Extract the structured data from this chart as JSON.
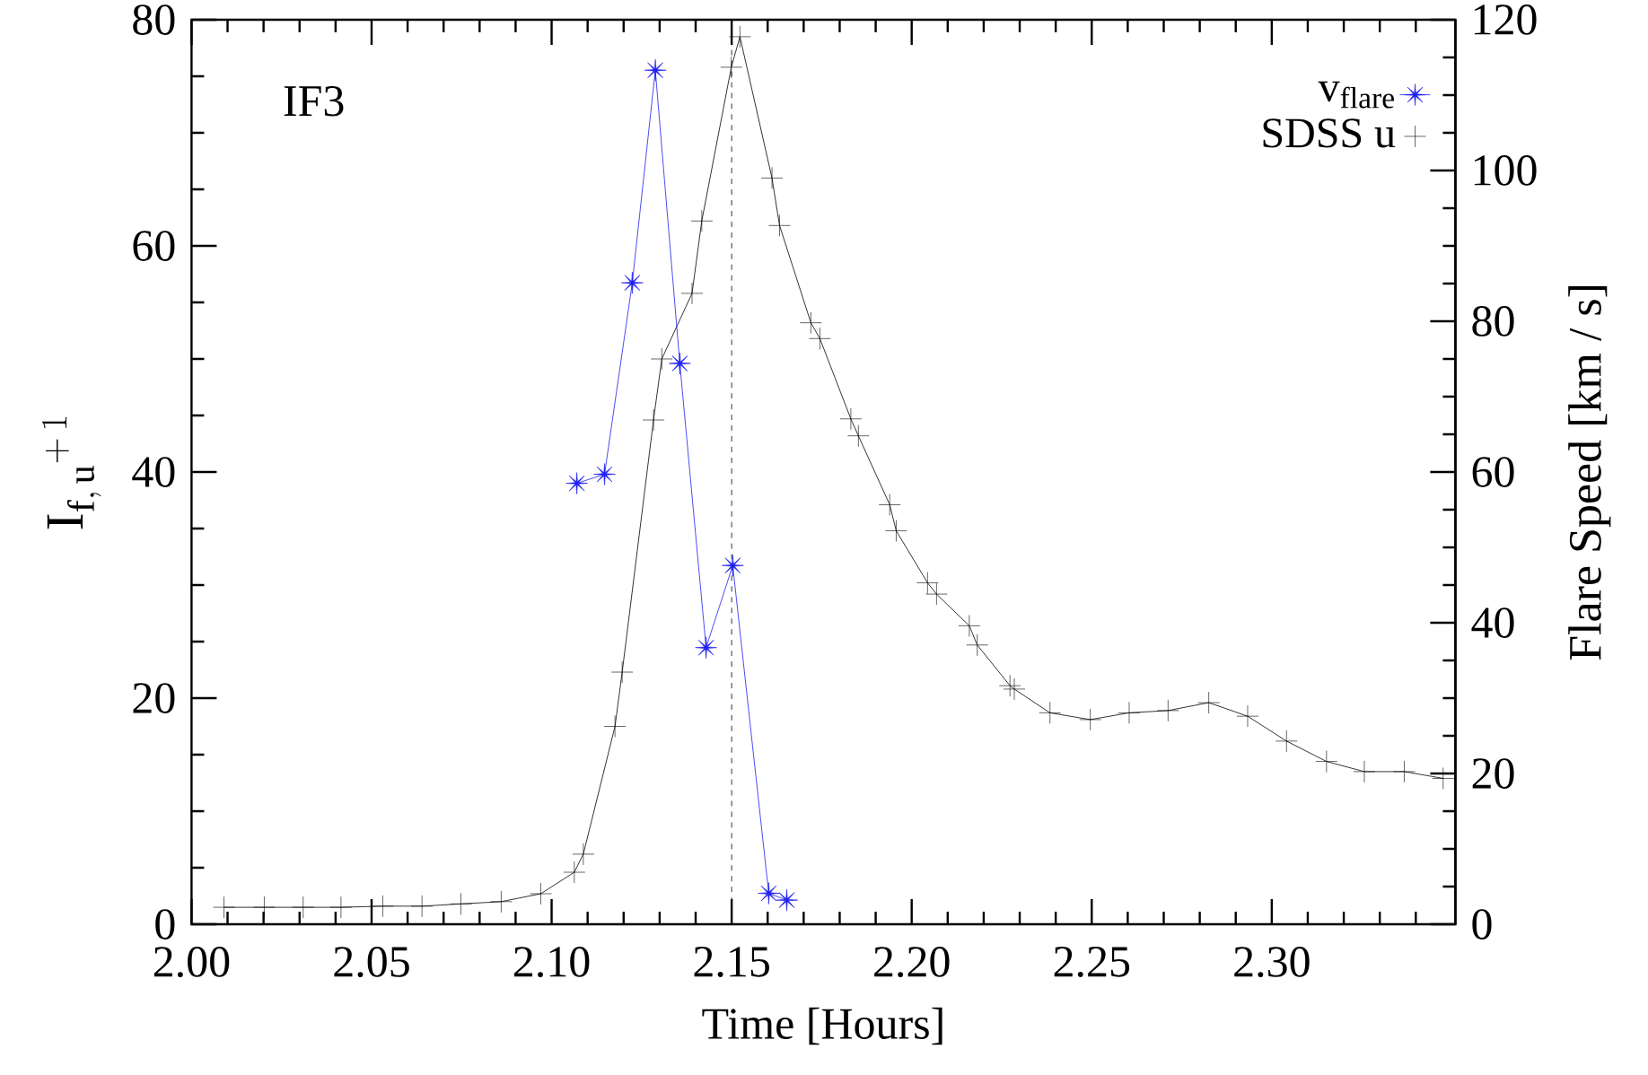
{
  "chart_data": {
    "type": "line",
    "xlabel": "Time [Hours]",
    "ylabel": "\\mathrm{I}_{\\mathrm{f,\\,u}}{}^{+\\,1}",
    "y2label": "Flare Speed [km / s]",
    "annotations": [
      "IF3"
    ],
    "legend": "top right",
    "xlim": [
      2.0,
      2.351
    ],
    "ylim": [
      0,
      80
    ],
    "y2lim": [
      0,
      120
    ],
    "xticks": [
      {
        "value": 2.0,
        "label": "2.00"
      },
      {
        "value": 2.01,
        "label": null
      },
      {
        "value": 2.02,
        "label": null
      },
      {
        "value": 2.03,
        "label": null
      },
      {
        "value": 2.04,
        "label": null
      },
      {
        "value": 2.05,
        "label": "2.05"
      },
      {
        "value": 2.06,
        "label": null
      },
      {
        "value": 2.07,
        "label": null
      },
      {
        "value": 2.08,
        "label": null
      },
      {
        "value": 2.09,
        "label": null
      },
      {
        "value": 2.1,
        "label": "2.10"
      },
      {
        "value": 2.11,
        "label": null
      },
      {
        "value": 2.12,
        "label": null
      },
      {
        "value": 2.13,
        "label": null
      },
      {
        "value": 2.14,
        "label": null
      },
      {
        "value": 2.15,
        "label": "2.15"
      },
      {
        "value": 2.16,
        "label": null
      },
      {
        "value": 2.17,
        "label": null
      },
      {
        "value": 2.18,
        "label": null
      },
      {
        "value": 2.19,
        "label": null
      },
      {
        "value": 2.2,
        "label": "2.20"
      },
      {
        "value": 2.21,
        "label": null
      },
      {
        "value": 2.22,
        "label": null
      },
      {
        "value": 2.23,
        "label": null
      },
      {
        "value": 2.24,
        "label": null
      },
      {
        "value": 2.25,
        "label": "2.25"
      },
      {
        "value": 2.26,
        "label": null
      },
      {
        "value": 2.27,
        "label": null
      },
      {
        "value": 2.28,
        "label": null
      },
      {
        "value": 2.29,
        "label": null
      },
      {
        "value": 2.3,
        "label": "2.30"
      },
      {
        "value": 2.31,
        "label": null
      },
      {
        "value": 2.32,
        "label": null
      },
      {
        "value": 2.33,
        "label": null
      },
      {
        "value": 2.34,
        "label": null
      }
    ],
    "yticks": [
      0,
      {
        "value": 5,
        "label": null
      },
      {
        "value": 10,
        "label": null
      },
      {
        "value": 15,
        "label": null
      },
      20,
      {
        "value": 25,
        "label": null
      },
      {
        "value": 30,
        "label": null
      },
      {
        "value": 35,
        "label": null
      },
      40,
      {
        "value": 45,
        "label": null
      },
      {
        "value": 50,
        "label": null
      },
      {
        "value": 55,
        "label": null
      },
      60,
      {
        "value": 65,
        "label": null
      },
      {
        "value": 70,
        "label": null
      },
      {
        "value": 75,
        "label": null
      },
      80
    ],
    "y2ticks": [
      0,
      {
        "value": 5,
        "label": null
      },
      {
        "value": 10,
        "label": null
      },
      {
        "value": 15,
        "label": null
      },
      20,
      {
        "value": 25,
        "label": null
      },
      {
        "value": 30,
        "label": null
      },
      {
        "value": 35,
        "label": null
      },
      40,
      {
        "value": 45,
        "label": null
      },
      {
        "value": 50,
        "label": null
      },
      {
        "value": 55,
        "label": null
      },
      60,
      {
        "value": 65,
        "label": null
      },
      {
        "value": 70,
        "label": null
      },
      {
        "value": 75,
        "label": null
      },
      80,
      {
        "value": 85,
        "label": null
      },
      {
        "value": 90,
        "label": null
      },
      {
        "value": 95,
        "label": null
      },
      100,
      {
        "value": 105,
        "label": null
      },
      {
        "value": 110,
        "label": null
      },
      {
        "value": 115,
        "label": null
      },
      120
    ],
    "ref_lines": [
      {
        "axis": "x",
        "value": 2.15,
        "color": "#000000",
        "line_style": "dashed"
      }
    ],
    "series": [
      {
        "name": "v$_{flare}$",
        "color": "#2020f0",
        "axis": "y2",
        "marker": "star",
        "x": [
          2.107,
          2.1147,
          2.1224,
          2.1288,
          2.1356,
          2.1429,
          2.1503,
          2.1603,
          2.1653
        ],
        "values": [
          58.5,
          59.7,
          85.1,
          113.3,
          74.4,
          36.7,
          47.6,
          4.1,
          3.2
        ]
      },
      {
        "name": "SDSS u",
        "color": "#000000",
        "marker": "cross",
        "x": [
          2.009,
          2.0202,
          2.031,
          2.0415,
          2.0531,
          2.064,
          2.0748,
          2.086,
          2.097,
          2.1063,
          2.1088,
          2.1176,
          2.1196,
          2.1283,
          2.1306,
          2.139,
          2.1417,
          2.1499,
          2.1523,
          2.1612,
          2.1633,
          2.172,
          2.1745,
          2.1831,
          2.1852,
          2.1939,
          2.1957,
          2.2044,
          2.2069,
          2.216,
          2.2182,
          2.2273,
          2.2285,
          2.2384,
          2.2496,
          2.2604,
          2.2712,
          2.2825,
          2.2933,
          2.3041,
          2.3152,
          2.3257,
          2.3368,
          2.3476
        ],
        "values": [
          1.5,
          1.5,
          1.5,
          1.5,
          1.6,
          1.6,
          1.8,
          2.0,
          2.7,
          4.6,
          6.2,
          17.5,
          22.3,
          44.6,
          50.0,
          55.8,
          62.2,
          75.8,
          78.5,
          66.0,
          61.8,
          53.2,
          51.8,
          44.7,
          43.2,
          37.1,
          34.8,
          30.2,
          29.2,
          26.4,
          24.7,
          21.1,
          20.8,
          18.7,
          18.1,
          18.7,
          18.9,
          19.6,
          18.4,
          16.2,
          14.4,
          13.5,
          13.5,
          12.9
        ]
      }
    ]
  }
}
